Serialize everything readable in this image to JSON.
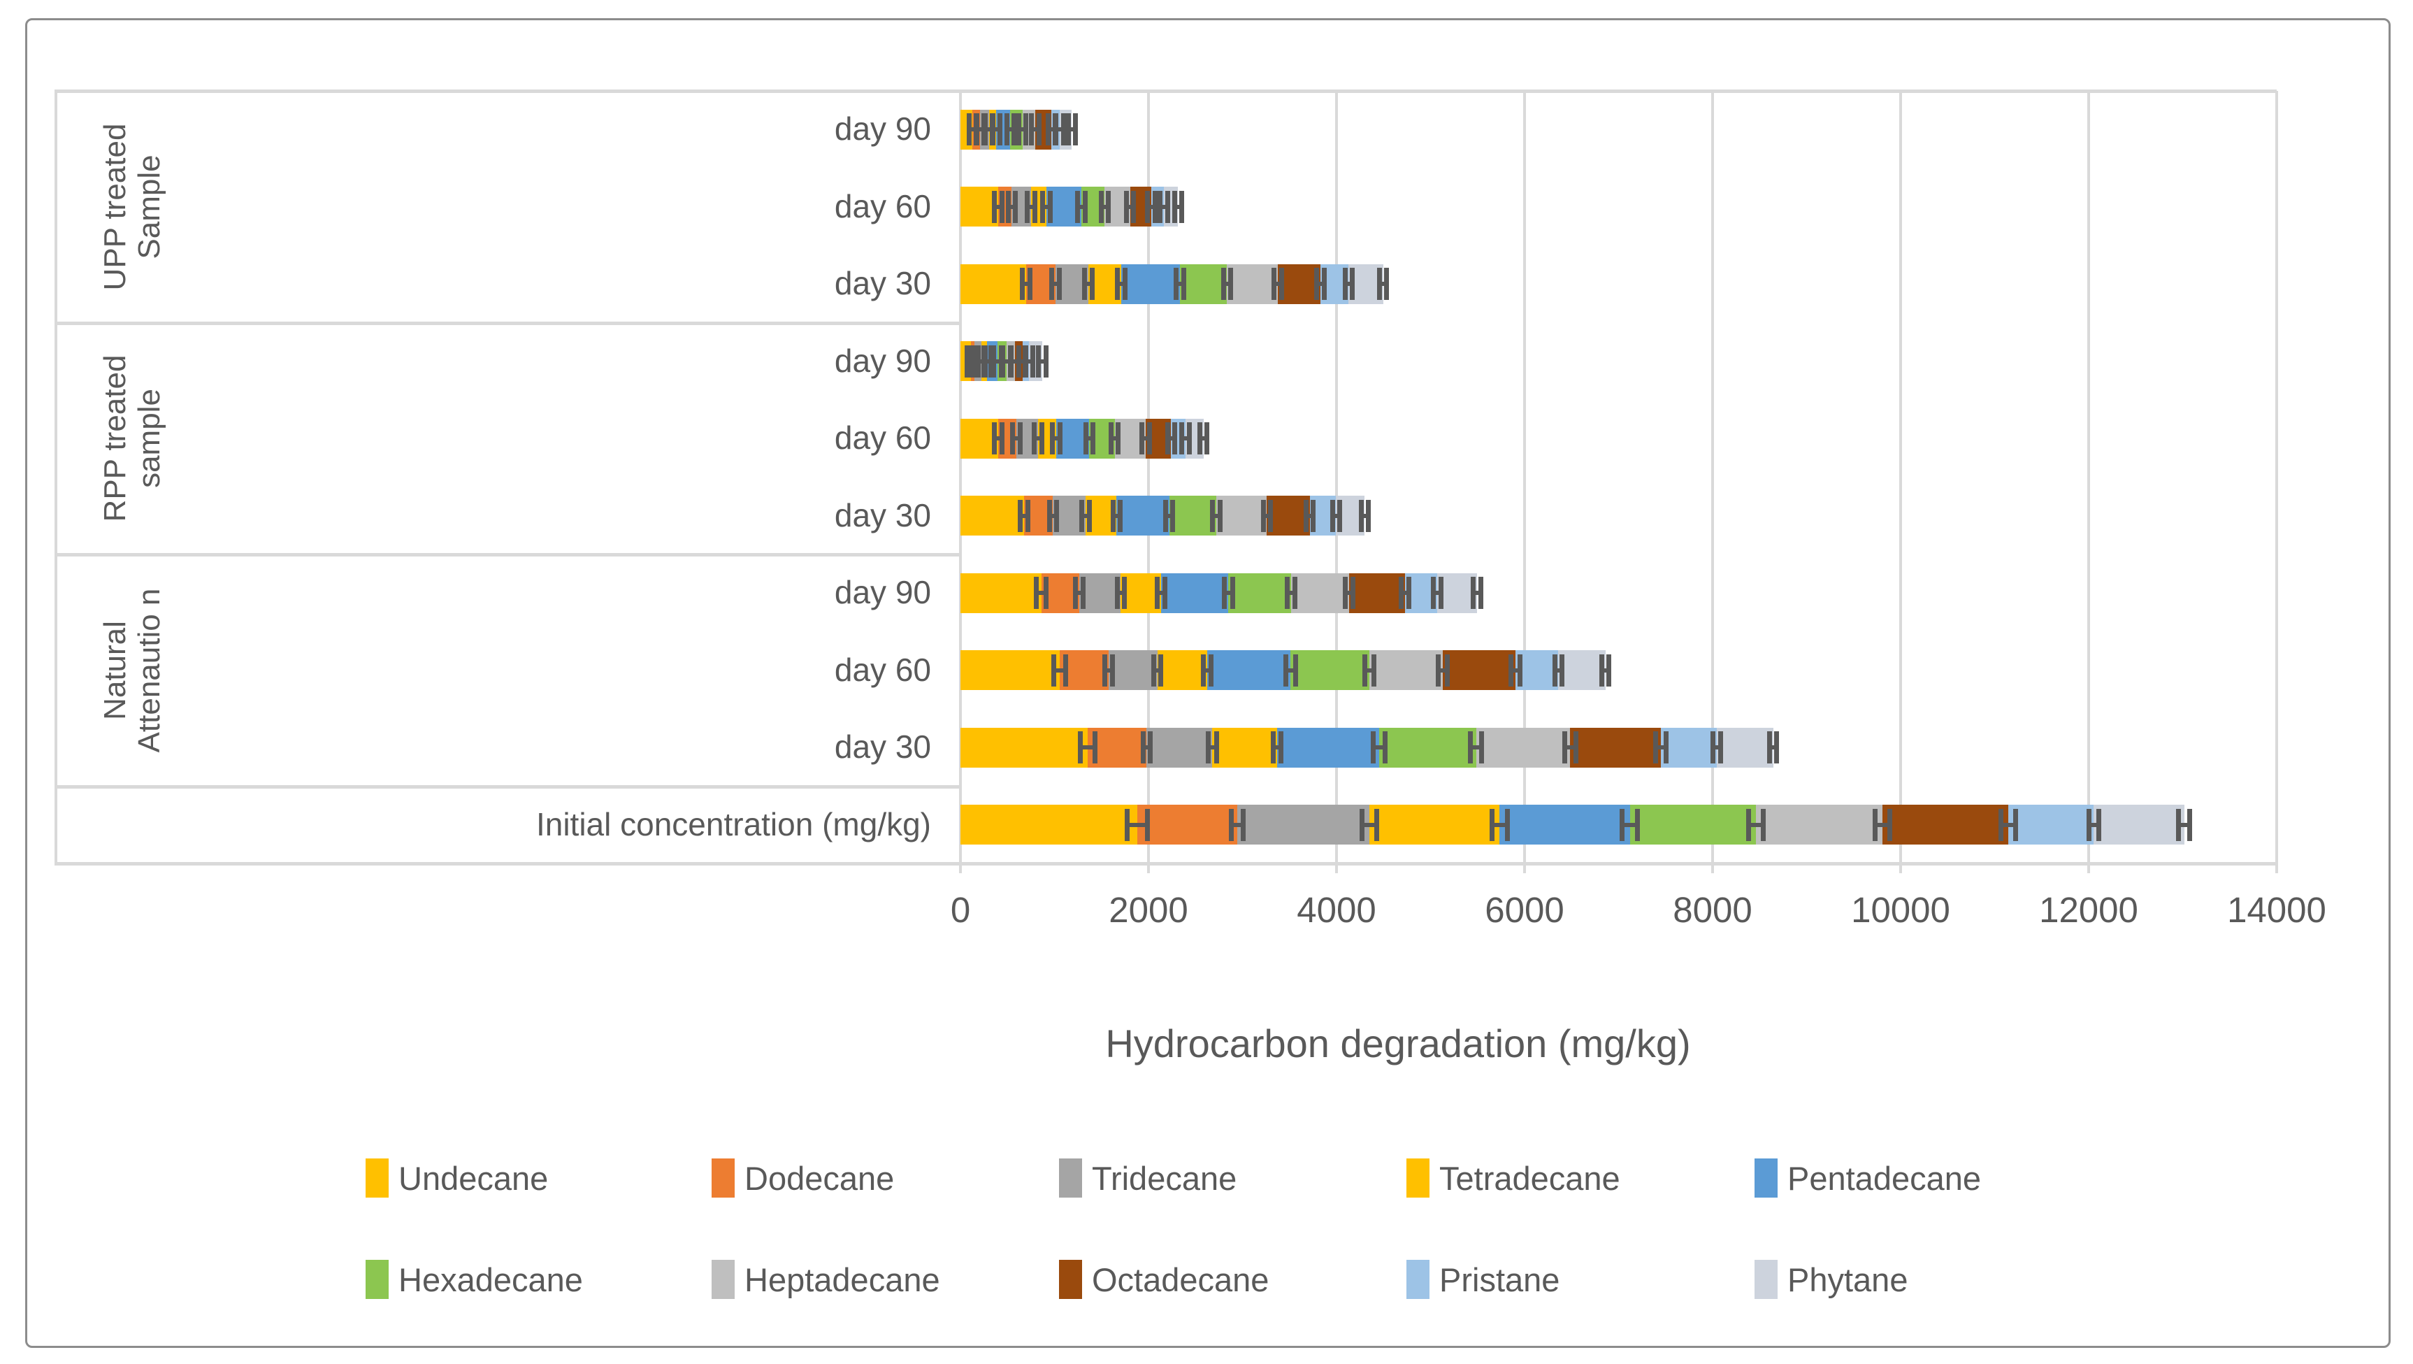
{
  "chart_data": {
    "type": "bar",
    "orientation": "horizontal",
    "stacked": true,
    "title": "",
    "xlabel": "Hydrocarbon degradation (mg/kg)",
    "ylabel": "",
    "xlim": [
      0,
      14000
    ],
    "xticks": [
      0,
      2000,
      4000,
      6000,
      8000,
      10000,
      12000,
      14000
    ],
    "grid": true,
    "gridline_color": "#d9d9d9",
    "text_color": "#595959",
    "error_bar_color": "#595959",
    "legend_position": "bottom",
    "series": [
      {
        "name": "Undecane",
        "color": "#FFC000"
      },
      {
        "name": "Dodecane",
        "color": "#ED7D31"
      },
      {
        "name": "Tridecane",
        "color": "#A5A5A5"
      },
      {
        "name": "Tetradecane",
        "color": "#FFC000"
      },
      {
        "name": "Pentadecane",
        "color": "#5B9BD5"
      },
      {
        "name": "Hexadecane",
        "color": "#8CC650"
      },
      {
        "name": "Heptadecane",
        "color": "#BFBFBF"
      },
      {
        "name": "Octadecane",
        "color": "#9A4A0D"
      },
      {
        "name": "Pristane",
        "color": "#9DC3E6"
      },
      {
        "name": "Phytane",
        "color": "#CDD3DD"
      }
    ],
    "groups": [
      {
        "label": "UPP treated Sample",
        "row_indexes": [
          0,
          1,
          2
        ]
      },
      {
        "label": "RPP treated sample",
        "row_indexes": [
          3,
          4,
          5
        ]
      },
      {
        "label": "Natural Attenautio n",
        "row_indexes": [
          6,
          7,
          8
        ]
      },
      {
        "label": "",
        "row_indexes": [
          9
        ]
      }
    ],
    "rows": [
      {
        "label": "day 90",
        "values": [
          130,
          80,
          95,
          75,
          150,
          130,
          135,
          175,
          85,
          130
        ]
      },
      {
        "label": "day 60",
        "values": [
          400,
          145,
          205,
          165,
          370,
          250,
          270,
          225,
          135,
          150
        ]
      },
      {
        "label": "day 30",
        "values": [
          700,
          310,
          350,
          350,
          625,
          500,
          540,
          455,
          300,
          365
        ]
      },
      {
        "label": "day 90",
        "values": [
          110,
          40,
          75,
          60,
          110,
          95,
          90,
          80,
          70,
          140
        ]
      },
      {
        "label": "day 60",
        "values": [
          400,
          195,
          230,
          195,
          350,
          270,
          330,
          270,
          155,
          190
        ]
      },
      {
        "label": "day 30",
        "values": [
          680,
          305,
          345,
          330,
          560,
          500,
          540,
          455,
          280,
          305
        ]
      },
      {
        "label": "day 90",
        "values": [
          860,
          405,
          440,
          430,
          715,
          670,
          615,
          595,
          340,
          425
        ]
      },
      {
        "label": "day 60",
        "values": [
          1055,
          520,
          520,
          530,
          885,
          840,
          780,
          775,
          455,
          500
        ]
      },
      {
        "label": "day 30",
        "values": [
          1350,
          630,
          700,
          685,
          1090,
          1030,
          1000,
          965,
          595,
          600
        ]
      },
      {
        "label": "Initial concentration (mg/kg)",
        "values": [
          1880,
          1065,
          1405,
          1385,
          1385,
          1340,
          1345,
          1340,
          910,
          960
        ]
      }
    ],
    "error_bars": true
  }
}
